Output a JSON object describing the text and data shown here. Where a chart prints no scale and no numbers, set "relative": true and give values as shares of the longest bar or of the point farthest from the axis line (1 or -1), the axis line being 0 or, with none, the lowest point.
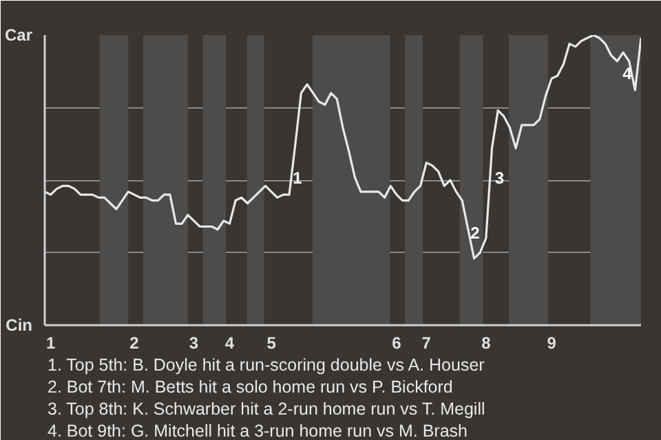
{
  "chart_data": {
    "type": "line",
    "relative": true,
    "categories": [
      null,
      "1",
      null,
      null,
      null,
      null,
      null,
      null,
      null,
      null,
      null,
      null,
      null,
      null,
      null,
      "2",
      null,
      null,
      null,
      null,
      null,
      null,
      null,
      null,
      null,
      "3",
      null,
      null,
      null,
      null,
      null,
      "4",
      null,
      null,
      null,
      null,
      null,
      null,
      "5",
      null,
      null,
      null,
      null,
      null,
      null,
      null,
      null,
      null,
      null,
      null,
      null,
      null,
      null,
      null,
      null,
      null,
      null,
      null,
      null,
      "6",
      null,
      null,
      null,
      null,
      "7",
      null,
      null,
      null,
      null,
      null,
      null,
      null,
      null,
      null,
      "8",
      null,
      null,
      null,
      null,
      null,
      null,
      null,
      null,
      null,
      null,
      "9",
      null,
      null,
      null,
      null,
      null,
      null,
      null,
      null,
      null,
      null,
      null,
      null,
      null,
      null,
      null
    ],
    "series": [
      {
        "color": "#e8e8e8",
        "values": [
          0.46,
          0.45,
          0.47,
          0.48,
          0.48,
          0.47,
          0.45,
          0.45,
          0.45,
          0.44,
          0.44,
          0.42,
          0.4,
          0.43,
          0.46,
          0.45,
          0.44,
          0.44,
          0.43,
          0.43,
          0.45,
          0.45,
          0.35,
          0.35,
          0.38,
          0.36,
          0.34,
          0.34,
          0.34,
          0.33,
          0.36,
          0.35,
          0.43,
          0.44,
          0.42,
          0.44,
          0.46,
          0.48,
          0.46,
          0.44,
          0.45,
          0.45,
          0.62,
          0.8,
          0.83,
          0.8,
          0.77,
          0.76,
          0.8,
          0.78,
          0.68,
          0.6,
          0.51,
          0.46,
          0.46,
          0.46,
          0.46,
          0.44,
          0.48,
          0.45,
          0.43,
          0.43,
          0.46,
          0.48,
          0.56,
          0.55,
          0.53,
          0.48,
          0.5,
          0.46,
          0.43,
          0.33,
          0.23,
          0.25,
          0.3,
          0.61,
          0.74,
          0.72,
          0.68,
          0.61,
          0.69,
          0.69,
          0.69,
          0.71,
          0.79,
          0.85,
          0.86,
          0.9,
          0.97,
          0.96,
          0.98,
          0.99,
          1.0,
          0.99,
          0.97,
          0.93,
          0.91,
          0.94,
          0.91,
          0.81,
          0.99
        ]
      }
    ],
    "grid": "y",
    "marker": "none",
    "line_style": "solid",
    "annotations": [
      "Car",
      "Cin",
      "1",
      "2",
      "3",
      "4",
      "1. Top 5th: B. Doyle hit a run-scoring double vs A. Houser",
      "2. Bot 7th: M. Betts hit a solo home run vs P. Bickford",
      "3. Top 8th: K. Schwarber hit a 2-run home run vs T. Megill",
      "4. Bot 9th: G. Mitchell hit a 3-run home run vs M. Brash"
    ]
  }
}
